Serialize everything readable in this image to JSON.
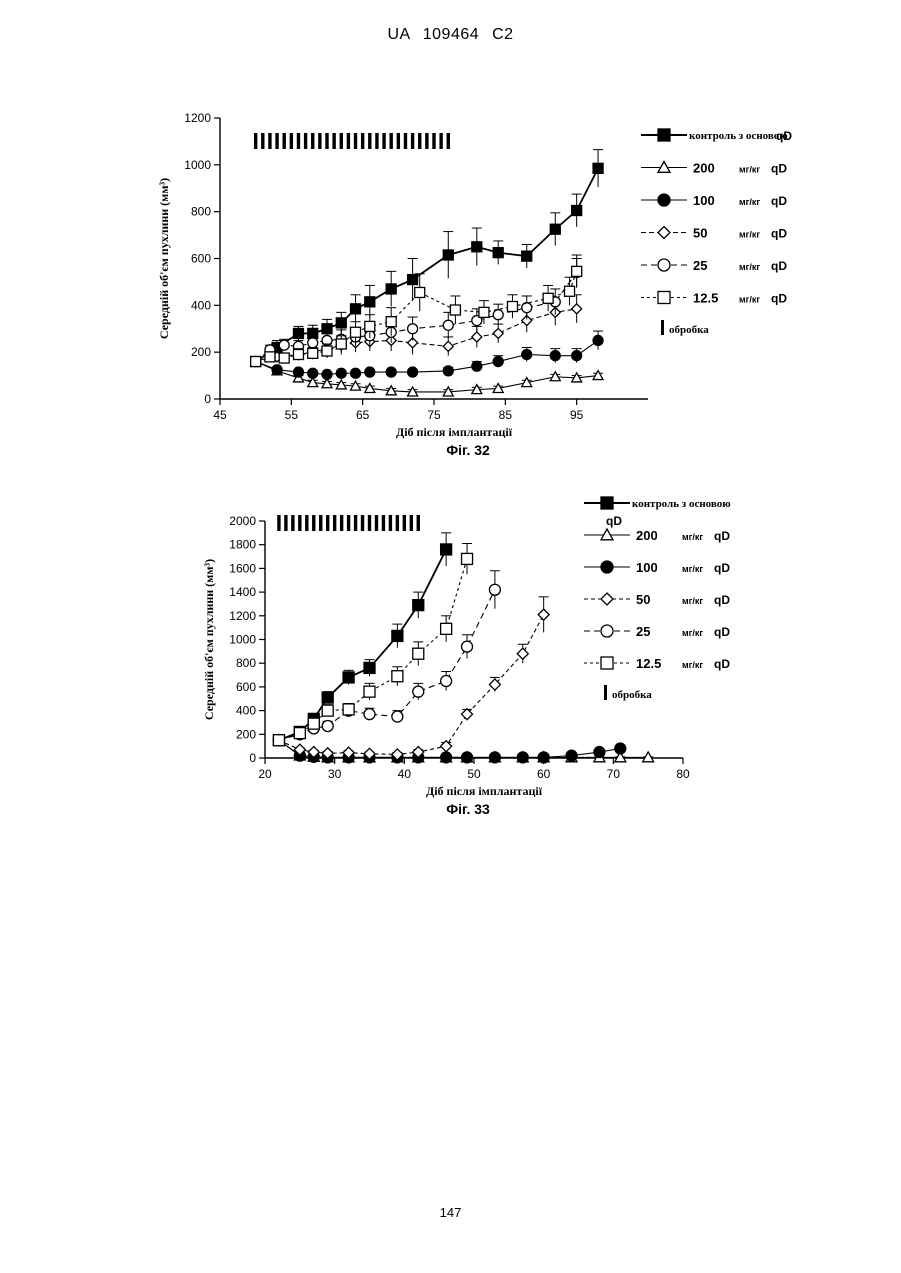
{
  "document": {
    "header": "UA   109464   C2",
    "page_number": "147"
  },
  "chart_data": [
    {
      "type": "line",
      "caption": "Фіг. 32",
      "xlabel": "Діб після імплантації",
      "ylabel": "Середній об'єм пухлини (мм³)",
      "xlim": [
        45,
        105
      ],
      "ylim": [
        0,
        1200
      ],
      "xticks": [
        45,
        55,
        65,
        75,
        85,
        95
      ],
      "yticks": [
        0,
        200,
        400,
        600,
        800,
        1000,
        1200
      ],
      "treatment_days": [
        50,
        51,
        52,
        53,
        54,
        55,
        56,
        57,
        58,
        59,
        60,
        61,
        62,
        63,
        64,
        65,
        66,
        67,
        68,
        69,
        70,
        71,
        72,
        73,
        74,
        75,
        76,
        77
      ],
      "treatment_marker_label": "обробка",
      "series": [
        {
          "name": "контроль з основою",
          "dose_unit": "",
          "freq": "qD",
          "marker": "square-filled",
          "dash": "",
          "x": [
            50,
            53,
            56,
            58,
            60,
            62,
            64,
            66,
            69,
            72,
            77,
            81,
            84,
            88,
            92,
            95,
            98
          ],
          "y": [
            160,
            220,
            280,
            280,
            300,
            325,
            385,
            415,
            470,
            510,
            615,
            650,
            625,
            610,
            725,
            805,
            985
          ],
          "err": [
            15,
            30,
            30,
            35,
            40,
            45,
            60,
            70,
            75,
            90,
            100,
            80,
            50,
            50,
            70,
            70,
            80
          ]
        },
        {
          "name": "200",
          "dose_unit": "мг/кг",
          "freq": "qD",
          "marker": "triangle-open",
          "dash": "",
          "x": [
            50,
            53,
            56,
            58,
            60,
            62,
            64,
            66,
            69,
            72,
            77,
            81,
            84,
            88,
            92,
            95,
            98
          ],
          "y": [
            160,
            120,
            90,
            70,
            65,
            60,
            55,
            45,
            35,
            30,
            30,
            40,
            45,
            70,
            95,
            90,
            100
          ],
          "err": [
            10,
            10,
            10,
            10,
            10,
            10,
            10,
            10,
            10,
            10,
            10,
            10,
            10,
            10,
            10,
            10,
            10
          ]
        },
        {
          "name": "100",
          "dose_unit": "мг/кг",
          "freq": "qD",
          "marker": "circle-filled",
          "dash": "",
          "x": [
            50,
            53,
            56,
            58,
            60,
            62,
            64,
            66,
            69,
            72,
            77,
            81,
            84,
            88,
            92,
            95,
            98
          ],
          "y": [
            160,
            125,
            115,
            110,
            105,
            110,
            110,
            115,
            115,
            115,
            120,
            140,
            160,
            190,
            185,
            185,
            250
          ],
          "err": [
            10,
            10,
            10,
            10,
            10,
            10,
            10,
            10,
            10,
            10,
            15,
            20,
            25,
            30,
            30,
            30,
            40
          ]
        },
        {
          "name": "50",
          "dose_unit": "мг/кг",
          "freq": "qD",
          "marker": "diamond-open",
          "dash": "5,3",
          "x": [
            50,
            53,
            56,
            58,
            60,
            62,
            64,
            66,
            69,
            72,
            77,
            81,
            84,
            88,
            92,
            95
          ],
          "y": [
            160,
            180,
            190,
            200,
            215,
            230,
            240,
            245,
            250,
            240,
            225,
            265,
            280,
            335,
            370,
            385
          ],
          "err": [
            15,
            20,
            25,
            30,
            35,
            40,
            40,
            40,
            45,
            50,
            40,
            45,
            40,
            50,
            55,
            60
          ]
        },
        {
          "name": "25",
          "dose_unit": "мг/кг",
          "freq": "qD",
          "marker": "circle-open",
          "dash": "6,4",
          "x": [
            50,
            52,
            54,
            56,
            58,
            60,
            62,
            64,
            66,
            69,
            72,
            77,
            81,
            84,
            88,
            92,
            95
          ],
          "y": [
            160,
            210,
            230,
            225,
            240,
            250,
            255,
            265,
            270,
            285,
            300,
            315,
            335,
            360,
            390,
            415,
            540
          ],
          "err": [
            15,
            20,
            25,
            25,
            30,
            35,
            40,
            40,
            45,
            45,
            50,
            55,
            50,
            45,
            50,
            55,
            60
          ]
        },
        {
          "name": "12.5",
          "dose_unit": "мг/кг",
          "freq": "qD",
          "marker": "square-open",
          "dash": "3,3",
          "x": [
            50,
            52,
            54,
            56,
            58,
            60,
            62,
            64,
            66,
            69,
            73,
            78,
            82,
            86,
            91,
            94,
            95
          ],
          "y": [
            160,
            180,
            175,
            190,
            195,
            205,
            235,
            285,
            310,
            330,
            455,
            380,
            370,
            395,
            430,
            460,
            545
          ],
          "err": [
            15,
            20,
            20,
            25,
            25,
            30,
            35,
            45,
            50,
            60,
            80,
            60,
            50,
            50,
            55,
            60,
            70
          ]
        }
      ]
    },
    {
      "type": "line",
      "caption": "Фіг. 33",
      "xlabel": "Діб після імплантації",
      "ylabel": "Середній об'єм пухлини (мм³)",
      "xlim": [
        20,
        80
      ],
      "ylim": [
        0,
        2000
      ],
      "xticks": [
        20,
        30,
        40,
        50,
        60,
        70,
        80
      ],
      "yticks": [
        0,
        200,
        400,
        600,
        800,
        1000,
        1200,
        1400,
        1600,
        1800,
        2000
      ],
      "treatment_days": [
        22,
        23,
        24,
        25,
        26,
        27,
        28,
        29,
        30,
        31,
        32,
        33,
        34,
        35,
        36,
        37,
        38,
        39,
        40,
        41,
        42
      ],
      "treatment_marker_label": "обробка",
      "series": [
        {
          "name": "контроль з основою",
          "dose_unit": "",
          "freq": "qD",
          "marker": "square-filled",
          "dash": "",
          "x": [
            22,
            25,
            27,
            29,
            32,
            35,
            39,
            42,
            46
          ],
          "y": [
            150,
            220,
            330,
            510,
            680,
            760,
            1030,
            1290,
            1760
          ],
          "err": [
            20,
            30,
            40,
            50,
            60,
            70,
            100,
            110,
            140
          ]
        },
        {
          "name": "200",
          "dose_unit": "мг/кг",
          "freq": "qD",
          "marker": "triangle-open",
          "dash": "",
          "x": [
            22,
            25,
            27,
            29,
            32,
            35,
            39,
            42,
            46,
            49,
            53,
            57,
            60,
            64,
            68,
            71,
            75
          ],
          "y": [
            150,
            20,
            10,
            5,
            5,
            5,
            5,
            5,
            5,
            5,
            5,
            5,
            5,
            5,
            5,
            5,
            5
          ],
          "err": [
            15,
            10,
            5,
            5,
            5,
            5,
            5,
            5,
            5,
            5,
            5,
            5,
            5,
            5,
            5,
            5,
            5
          ]
        },
        {
          "name": "100",
          "dose_unit": "мг/кг",
          "freq": "qD",
          "marker": "circle-filled",
          "dash": "",
          "x": [
            22,
            25,
            27,
            29,
            32,
            35,
            39,
            42,
            46,
            49,
            53,
            57,
            60,
            64,
            68,
            71
          ],
          "y": [
            150,
            20,
            10,
            5,
            5,
            5,
            5,
            5,
            5,
            5,
            5,
            5,
            5,
            20,
            50,
            80
          ],
          "err": [
            15,
            10,
            5,
            5,
            5,
            5,
            5,
            5,
            5,
            5,
            5,
            5,
            5,
            10,
            15,
            20
          ]
        },
        {
          "name": "50",
          "dose_unit": "мг/кг",
          "freq": "qD",
          "marker": "diamond-open",
          "dash": "4,3",
          "x": [
            22,
            25,
            27,
            29,
            32,
            35,
            39,
            42,
            46,
            49,
            53,
            57,
            60
          ],
          "y": [
            150,
            70,
            50,
            40,
            45,
            35,
            30,
            50,
            100,
            370,
            620,
            880,
            1210
          ],
          "err": [
            15,
            15,
            15,
            15,
            15,
            15,
            15,
            20,
            30,
            40,
            60,
            80,
            150
          ]
        },
        {
          "name": "25",
          "dose_unit": "мг/кг",
          "freq": "qD",
          "marker": "circle-open",
          "dash": "6,4",
          "x": [
            22,
            25,
            27,
            29,
            32,
            35,
            39,
            42,
            46,
            49,
            53
          ],
          "y": [
            150,
            200,
            250,
            270,
            400,
            370,
            350,
            560,
            650,
            940,
            1420
          ],
          "err": [
            20,
            30,
            40,
            40,
            50,
            50,
            50,
            70,
            80,
            100,
            160
          ]
        },
        {
          "name": "12.5",
          "dose_unit": "мг/кг",
          "freq": "qD",
          "marker": "square-open",
          "dash": "3,3",
          "x": [
            22,
            25,
            27,
            29,
            32,
            35,
            39,
            42,
            46,
            49
          ],
          "y": [
            150,
            210,
            290,
            400,
            410,
            560,
            690,
            880,
            1090,
            1680
          ],
          "err": [
            20,
            30,
            40,
            50,
            50,
            70,
            80,
            100,
            110,
            130
          ]
        }
      ]
    }
  ]
}
